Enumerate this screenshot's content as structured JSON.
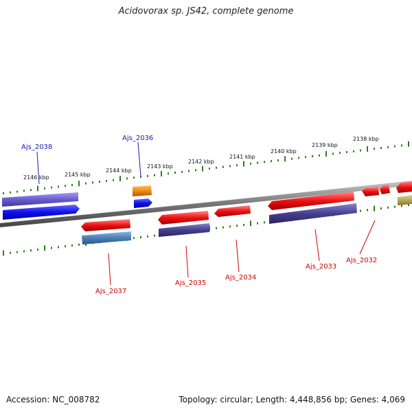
{
  "title": "Acidovorax sp. JS42, complete genome",
  "footer": {
    "accession": "Accession: NC_008782",
    "stats": "Topology: circular; Length: 4,448,856 bp; Genes: 4,069"
  },
  "scale_labels": [
    "2146 kbp",
    "2145 kbp",
    "2144 kbp",
    "2143 kbp",
    "2142 kbp",
    "2141 kbp",
    "2140 kbp",
    "2139 kbp",
    "2138 kbp"
  ],
  "gene_labels": {
    "ajs_2038": "Ajs_2038",
    "ajs_2036": "Ajs_2036",
    "ajs_2037": "Ajs_2037",
    "ajs_2035": "Ajs_2035",
    "ajs_2034": "Ajs_2034",
    "ajs_2033": "Ajs_2033",
    "ajs_2032": "Ajs_2032"
  },
  "colors": {
    "forward_label": "#1a1aa8",
    "reverse_label": "#cc0000",
    "backbone": "#8a8a8a",
    "tick": "#2e7d1e",
    "cds_red": "#ee1111",
    "cds_blue": "#1010ee",
    "cds_orange": "#f08a10",
    "cds_slate": "#463f8f",
    "cds_lavender": "#6a5ccf",
    "cds_steel": "#4a7eb6",
    "cds_olive": "#b6a65a"
  }
}
